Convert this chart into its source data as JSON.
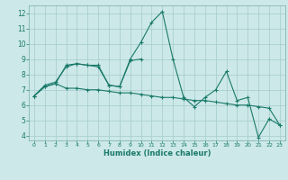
{
  "xlabel": "Humidex (Indice chaleur)",
  "xlim": [
    -0.5,
    23.5
  ],
  "ylim": [
    3.7,
    12.5
  ],
  "yticks": [
    4,
    5,
    6,
    7,
    8,
    9,
    10,
    11,
    12
  ],
  "xticks": [
    0,
    1,
    2,
    3,
    4,
    5,
    6,
    7,
    8,
    9,
    10,
    11,
    12,
    13,
    14,
    15,
    16,
    17,
    18,
    19,
    20,
    21,
    22,
    23
  ],
  "bg_color": "#cce8e8",
  "grid_color": "#aacfcf",
  "line_color": "#1a7a6a",
  "series": [
    [
      6.6,
      7.3,
      7.5,
      8.5,
      8.7,
      8.6,
      8.6,
      7.3,
      7.2,
      9.0,
      10.1,
      11.4,
      12.1,
      9.0,
      6.5,
      5.9,
      6.5,
      7.0,
      8.2,
      6.3,
      6.5,
      3.9,
      5.1,
      4.7
    ],
    [
      6.6,
      7.2,
      7.4,
      8.6,
      8.7,
      8.6,
      8.5,
      7.3,
      7.2,
      8.9,
      9.0,
      null,
      null,
      null,
      null,
      null,
      null,
      null,
      null,
      null,
      null,
      null,
      null,
      null
    ],
    [
      6.6,
      7.2,
      7.4,
      7.1,
      7.1,
      7.0,
      7.0,
      6.9,
      6.8,
      6.8,
      6.7,
      6.6,
      6.5,
      6.5,
      6.4,
      6.3,
      6.3,
      6.2,
      6.1,
      6.0,
      6.0,
      5.9,
      5.8,
      4.7
    ]
  ]
}
